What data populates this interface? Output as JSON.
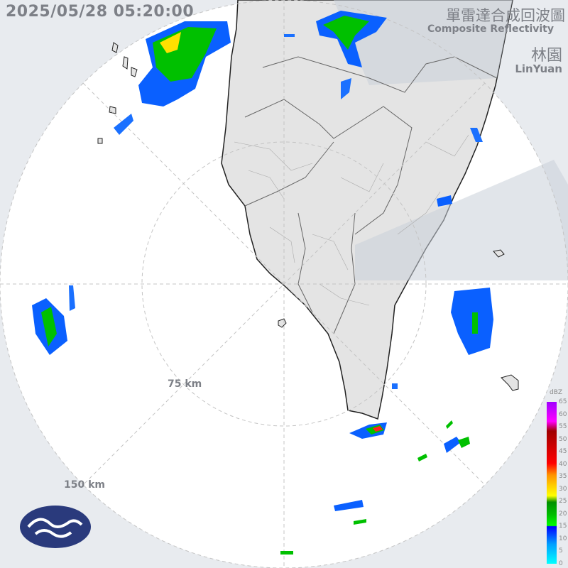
{
  "header": {
    "timestamp": "2025/05/28 05:20:00",
    "product_title_zh": "單雷達合成回波圖",
    "product_title_en": "Composite Reflectivity",
    "station_zh": "林園",
    "station_en": "LinYuan"
  },
  "range_rings": [
    {
      "label": "75 km"
    },
    {
      "label": "150 km"
    }
  ],
  "legend": {
    "unit": "dBZ",
    "ticks": [
      "65",
      "60",
      "55",
      "50",
      "45",
      "40",
      "35",
      "30",
      "25",
      "20",
      "15",
      "10",
      "5",
      "0"
    ]
  },
  "colors": {
    "land": "#e4e4e4",
    "sea": "#ffffff",
    "outside_range": "#e8ebef",
    "blocked_sector": "#d6dbe2",
    "text": "#7d8087",
    "logo": "#2a3a7c"
  }
}
